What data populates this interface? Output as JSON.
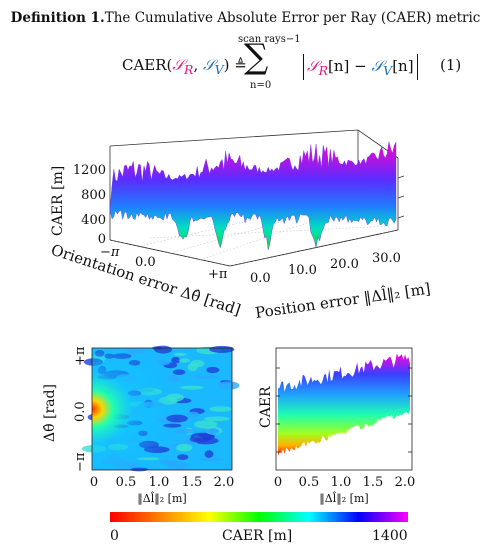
{
  "definition": {
    "label": "Definition 1.",
    "text": "The Cumulative Absolute Error per Ray (CAER) metric"
  },
  "equation": {
    "lhs_name": "CAER(",
    "arg1": "𝒮",
    "arg1_sub": "R",
    "comma": ", ",
    "arg2": "𝒮",
    "arg2_sub": "V",
    "lhs_close": ") ≜",
    "sum_upper": "scan rays−1",
    "sum_symbol": "∑",
    "sum_lower": "n=0",
    "rhs_term1": "𝒮",
    "rhs_sub1": "R",
    "rhs_index1": "[n] − ",
    "rhs_term2": "𝒮",
    "rhs_sub2": "V",
    "rhs_index2": "[n]",
    "number": "(1)"
  },
  "surface_plot": {
    "zlabel": "CAER [m]",
    "zticks": [
      "0",
      "400",
      "800",
      "1200"
    ],
    "orientation_label": "Orientation error Δθ̂ [rad]",
    "orientation_ticks": [
      "−π",
      "0.0",
      "+π"
    ],
    "position_label": "Position error ‖Δl̂‖₂ [m]",
    "position_ticks": [
      "0.0",
      "10.0",
      "20.0",
      "30.0"
    ]
  },
  "heatmap": {
    "ylabel": "Δθ̂ [rad]",
    "yticks": [
      "+π",
      "0.0",
      "−π"
    ],
    "xticks": [
      "0",
      "0.5",
      "1.0",
      "1.5",
      "2.0"
    ],
    "xlabel": "‖Δl̂‖₂ [m]"
  },
  "side_view": {
    "ylabel": "CAER",
    "xticks": [
      "0",
      "0.5",
      "1.0",
      "1.5",
      "2.0"
    ],
    "xlabel": "‖Δl̂‖₂ [m]"
  },
  "colorbar": {
    "min_label": "0",
    "title": "CAER [m]",
    "max_label": "1400",
    "stops": [
      "#ff0000",
      "#ff8000",
      "#ffff00",
      "#00ff00",
      "#00ffff",
      "#0000ff",
      "#ff00ff"
    ]
  }
}
